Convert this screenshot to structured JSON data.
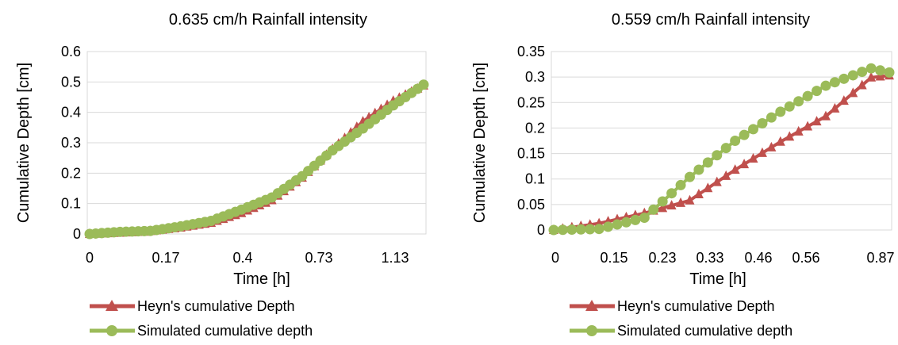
{
  "chart_data": [
    {
      "type": "line",
      "title": "0.635 cm/h Rainfall intensity",
      "xlabel": "Time [h]",
      "ylabel": "Cumulative Depth [cm]",
      "x_tick_labels": [
        "0",
        "0.17",
        "0.4",
        "0.73",
        "1.13"
      ],
      "y_tick_labels": [
        "0",
        "0.1",
        "0.2",
        "0.3",
        "0.4",
        "0.5",
        "0.6"
      ],
      "ylim": [
        0,
        0.6
      ],
      "grid": "horizontal",
      "legend_position": "bottom",
      "series": [
        {
          "name": "Heyn's cumulative Depth",
          "color": "#C0504D",
          "marker": "triangle",
          "values": [
            0,
            0.0008,
            0.0016,
            0.0024,
            0.0032,
            0.004,
            0.0048,
            0.0056,
            0.0064,
            0.0072,
            0.0095,
            0.0118,
            0.0141,
            0.0164,
            0.0187,
            0.021,
            0.0241,
            0.0272,
            0.0303,
            0.0334,
            0.0365,
            0.0429,
            0.0493,
            0.0557,
            0.0621,
            0.0685,
            0.077,
            0.0855,
            0.094,
            0.1025,
            0.111,
            0.1258,
            0.1406,
            0.1554,
            0.1702,
            0.185,
            0.2038,
            0.2226,
            0.2414,
            0.2602,
            0.279,
            0.2972,
            0.3154,
            0.3336,
            0.3518,
            0.37,
            0.3836,
            0.3972,
            0.4108,
            0.4244,
            0.438,
            0.448,
            0.458,
            0.468,
            0.478,
            0.488
          ]
        },
        {
          "name": "Simulated cumulative depth",
          "color": "#9BBB59",
          "marker": "circle",
          "values": [
            0,
            0.0014,
            0.0028,
            0.0042,
            0.0056,
            0.007,
            0.0076,
            0.0082,
            0.0088,
            0.0094,
            0.01,
            0.013,
            0.016,
            0.019,
            0.022,
            0.025,
            0.0286,
            0.0322,
            0.0358,
            0.0394,
            0.043,
            0.0504,
            0.0578,
            0.0652,
            0.0726,
            0.08,
            0.088,
            0.096,
            0.104,
            0.112,
            0.12,
            0.134,
            0.148,
            0.162,
            0.176,
            0.19,
            0.207,
            0.224,
            0.241,
            0.258,
            0.275,
            0.2894,
            0.3038,
            0.3182,
            0.3326,
            0.347,
            0.3622,
            0.3774,
            0.3926,
            0.4078,
            0.423,
            0.4366,
            0.4502,
            0.4638,
            0.4774,
            0.491
          ]
        }
      ]
    },
    {
      "type": "line",
      "title": "0.559 cm/h Rainfall intensity",
      "xlabel": "Time [h]",
      "ylabel": "Cumulative Depth [cm]",
      "x_tick_labels": [
        "0",
        "0.15",
        "0.23",
        "0.33",
        "0.46",
        "0.56",
        "0.87"
      ],
      "y_tick_labels": [
        "0",
        "0.05",
        "0.1",
        "0.15",
        "0.2",
        "0.25",
        "0.3",
        "0.35"
      ],
      "ylim": [
        0,
        0.35
      ],
      "grid": "horizontal",
      "legend_position": "bottom",
      "series": [
        {
          "name": "Heyn's cumulative Depth",
          "color": "#C0504D",
          "marker": "triangle",
          "values": [
            0,
            0.0026,
            0.0052,
            0.0078,
            0.0104,
            0.013,
            0.017,
            0.021,
            0.025,
            0.029,
            0.033,
            0.038,
            0.043,
            0.048,
            0.053,
            0.058,
            0.07,
            0.082,
            0.094,
            0.106,
            0.118,
            0.129,
            0.14,
            0.151,
            0.162,
            0.173,
            0.183,
            0.193,
            0.203,
            0.213,
            0.223,
            0.2382,
            0.2534,
            0.2686,
            0.2838,
            0.299,
            0.301,
            0.303
          ]
        },
        {
          "name": "Simulated cumulative depth",
          "color": "#9BBB59",
          "marker": "circle",
          "values": [
            0,
            0.0004,
            0.0008,
            0.0012,
            0.0016,
            0.002,
            0.0064,
            0.0108,
            0.0152,
            0.0196,
            0.024,
            0.04,
            0.056,
            0.072,
            0.088,
            0.104,
            0.1182,
            0.1324,
            0.1466,
            0.1608,
            0.175,
            0.1864,
            0.1978,
            0.2092,
            0.2206,
            0.232,
            0.2422,
            0.2524,
            0.2626,
            0.2728,
            0.283,
            0.2898,
            0.2966,
            0.3034,
            0.3102,
            0.317,
            0.313,
            0.309
          ]
        }
      ]
    }
  ]
}
